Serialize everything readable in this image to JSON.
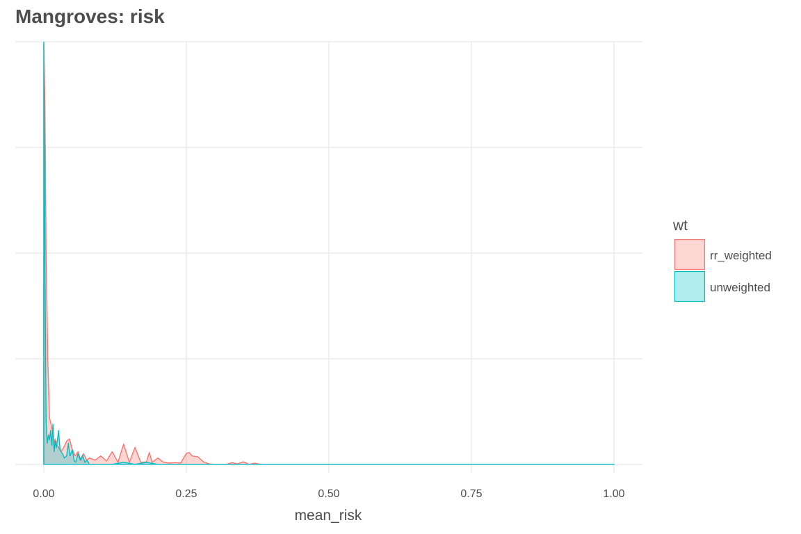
{
  "chart_data": {
    "type": "area",
    "subtype": "density",
    "title": "Mangroves: risk",
    "xlabel": "mean_risk",
    "ylabel": "",
    "xlim": [
      -0.05,
      1.05
    ],
    "ylim": [
      -0.02,
      1.0
    ],
    "x_ticks": [
      0.0,
      0.25,
      0.5,
      0.75,
      1.0
    ],
    "x_tick_labels": [
      "0.00",
      "0.25",
      "0.50",
      "0.75",
      "1.00"
    ],
    "y_gridlines": [
      0.0,
      0.25,
      0.5,
      0.75,
      1.0
    ],
    "grid": true,
    "legend": {
      "title": "wt",
      "position": "right"
    },
    "series": [
      {
        "name": "rr_weighted",
        "color": "#F8766D",
        "fill": "#F8766D",
        "fill_opacity": 0.3,
        "x": [
          0.0,
          0.002,
          0.004,
          0.007,
          0.01,
          0.012,
          0.015,
          0.018,
          0.02,
          0.023,
          0.026,
          0.03,
          0.035,
          0.04,
          0.045,
          0.05,
          0.055,
          0.06,
          0.065,
          0.07,
          0.075,
          0.08,
          0.09,
          0.1,
          0.11,
          0.12,
          0.13,
          0.14,
          0.15,
          0.16,
          0.17,
          0.18,
          0.185,
          0.19,
          0.2,
          0.21,
          0.22,
          0.23,
          0.24,
          0.25,
          0.255,
          0.26,
          0.27,
          0.28,
          0.29,
          0.3,
          0.31,
          0.32,
          0.33,
          0.34,
          0.35,
          0.36,
          0.37,
          0.38,
          0.4,
          0.5,
          0.75,
          1.0
        ],
        "y": [
          0.996,
          0.85,
          0.5,
          0.25,
          0.11,
          0.1,
          0.08,
          0.05,
          0.06,
          0.045,
          0.04,
          0.03,
          0.04,
          0.055,
          0.06,
          0.035,
          0.02,
          0.03,
          0.01,
          0.025,
          0.01,
          0.015,
          0.01,
          0.02,
          0.008,
          0.03,
          0.005,
          0.048,
          0.005,
          0.04,
          0.005,
          0.006,
          0.028,
          0.005,
          0.015,
          0.005,
          0.003,
          0.004,
          0.003,
          0.026,
          0.028,
          0.02,
          0.018,
          0.006,
          0.001,
          0.0,
          0.0,
          0.0,
          0.004,
          0.001,
          0.006,
          0.0,
          0.003,
          0.0,
          0.0,
          0.0,
          0.0,
          0.0
        ]
      },
      {
        "name": "unweighted",
        "color": "#00BFC4",
        "fill": "#00BFC4",
        "fill_opacity": 0.3,
        "x": [
          0.0,
          0.002,
          0.004,
          0.006,
          0.008,
          0.01,
          0.012,
          0.014,
          0.016,
          0.018,
          0.02,
          0.022,
          0.024,
          0.026,
          0.028,
          0.03,
          0.033,
          0.036,
          0.04,
          0.043,
          0.046,
          0.05,
          0.053,
          0.056,
          0.06,
          0.064,
          0.068,
          0.072,
          0.076,
          0.08,
          0.1,
          0.12,
          0.14,
          0.16,
          0.18,
          0.2,
          0.5,
          1.0
        ],
        "y": [
          0.999,
          0.5,
          0.1,
          0.05,
          0.07,
          0.058,
          0.08,
          0.045,
          0.095,
          0.03,
          0.055,
          0.04,
          0.06,
          0.08,
          0.04,
          0.03,
          0.025,
          0.015,
          0.02,
          0.05,
          0.02,
          0.035,
          0.01,
          0.005,
          0.025,
          0.01,
          0.022,
          0.005,
          0.01,
          0.0,
          0.0,
          0.0,
          0.005,
          0.0,
          0.005,
          0.0,
          0.0,
          0.0
        ]
      }
    ]
  }
}
